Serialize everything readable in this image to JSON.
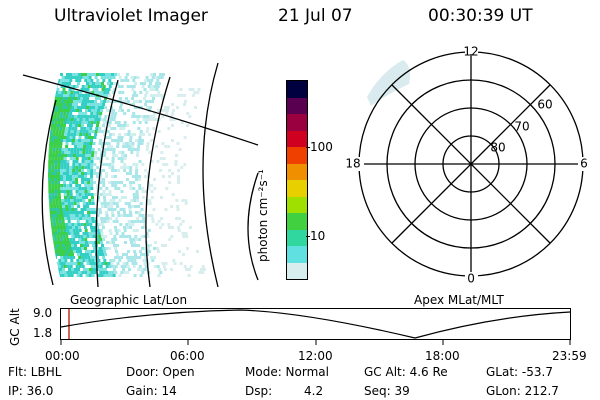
{
  "header": {
    "title": "Ultraviolet Imager",
    "date": "21 Jul 07",
    "time": "00:30:39 UT"
  },
  "colorbar": {
    "label": "photon cm⁻²s⁻¹",
    "ticks": [
      "100",
      "10"
    ],
    "colors": [
      "#000040",
      "#5a0050",
      "#9a0040",
      "#d00020",
      "#f04000",
      "#f09000",
      "#e8d000",
      "#a0e000",
      "#40d040",
      "#30d8a0",
      "#60e0e0",
      "#d8eeee"
    ]
  },
  "polar": {
    "mlt_labels": [
      "12",
      "18",
      "6",
      "0"
    ],
    "lat_labels": [
      "60",
      "70",
      "80"
    ]
  },
  "timeline": {
    "axis_label": "GC Alt",
    "y_ticks": [
      "9.0",
      "1.8"
    ],
    "left_label": "Geographic Lat/Lon",
    "right_label": "Apex MLat/MLT",
    "x_ticks": [
      "00:00",
      "06:00",
      "12:00",
      "18:00",
      "23:59"
    ]
  },
  "info": {
    "filter": "Flt: LBHL",
    "door": "Door: Open",
    "mode": "Mode: Normal",
    "gc_alt": "GC Alt: 4.6 Re",
    "glat": "GLat: -53.7",
    "ip": "IP: 36.0",
    "gain": "Gain: 14",
    "dsp_label": "Dsp:",
    "dsp_value": "4.2",
    "seq": "Seq: 39",
    "glon": "GLon: 212.7"
  }
}
